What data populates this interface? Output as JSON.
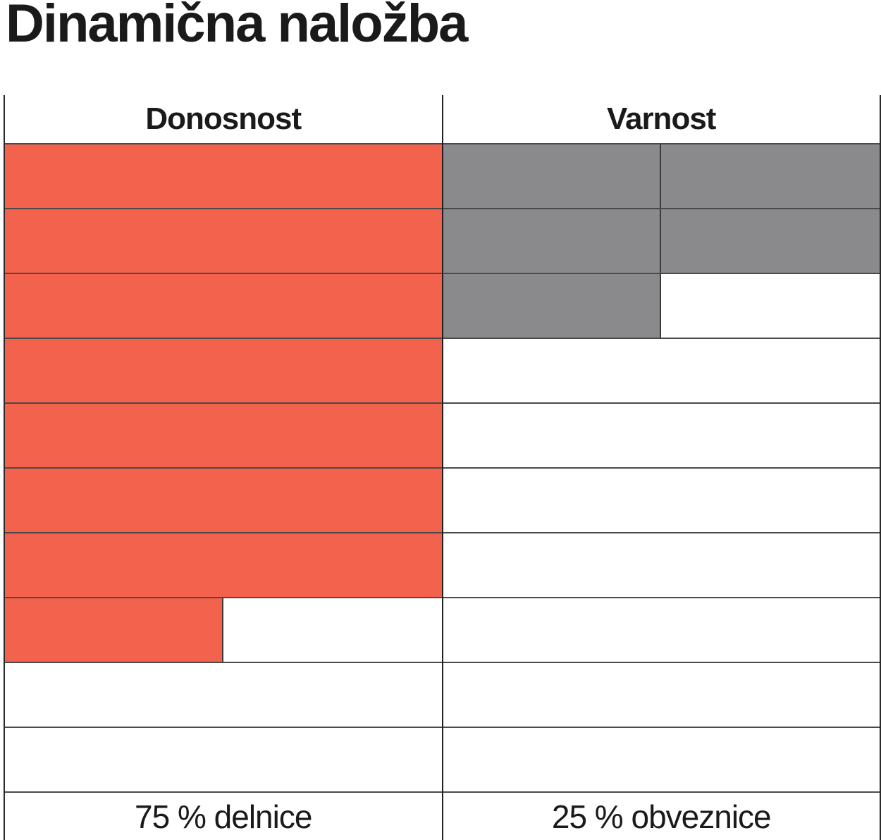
{
  "title": "Dinamična naložba",
  "chart_data": {
    "type": "bar",
    "subtype": "rating-grid",
    "title": "Dinamična naložba",
    "orientation": "horizontal",
    "rows": 10,
    "row_unit_pct": 10,
    "grid": true,
    "legend_position": "none",
    "series": [
      {
        "name": "Donosnost",
        "label": "75 % delnice",
        "value_pct": 75,
        "cells": [
          1,
          1,
          1,
          1,
          1,
          1,
          1,
          0.5,
          0,
          0
        ],
        "color": "#F2624C",
        "segmented": false
      },
      {
        "name": "Varnost",
        "label": "25 % obveznice",
        "value_pct": 25,
        "cells": [
          1,
          1,
          0.5,
          0,
          0,
          0,
          0,
          0,
          0,
          0
        ],
        "color": "#8A8A8D",
        "segmented": true
      }
    ]
  },
  "colors": {
    "background": "#FFFFFF",
    "text": "#1A1A1A",
    "border_horizontal": "#4A4A4A",
    "border_vertical": "#1F1F1F",
    "bar_orange": "#F2624C",
    "bar_gray": "#8A8A8D"
  }
}
